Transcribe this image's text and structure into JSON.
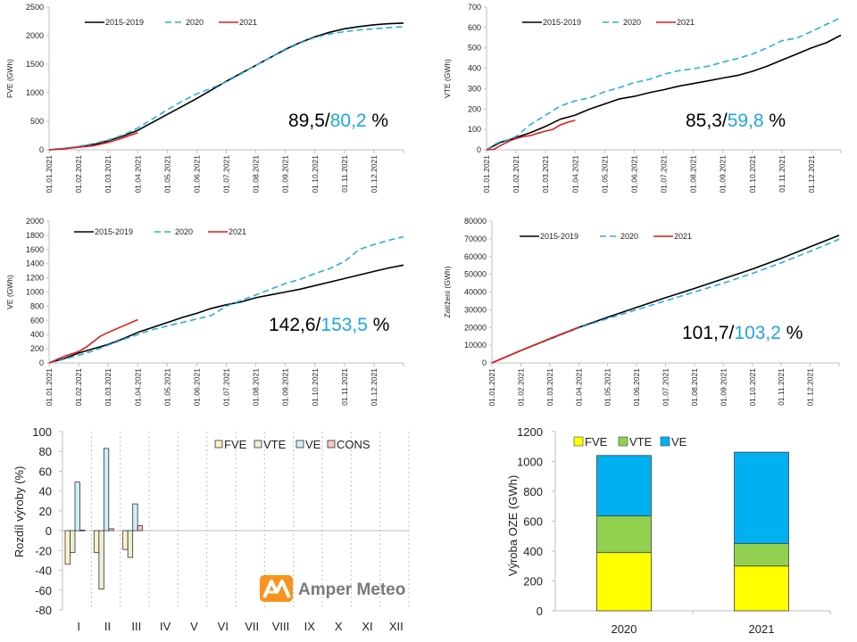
{
  "colors": {
    "black": "#000000",
    "blue_dashed": "#2aaee0",
    "red": "#e21a1a",
    "ann_blue": "#1ea7e0",
    "fve_bar": "#fff2c8",
    "vte_bar": "#e8f1d6",
    "ve_bar": "#cdeefa",
    "cons_bar": "#f6c6c6",
    "stack_fve": "#ffff00",
    "stack_vte": "#92d050",
    "stack_ve": "#00b0f0",
    "logo_orange": "#f7941d"
  },
  "logo": {
    "text": "Amper Meteo",
    "icon": "amper-meteo-logo-icon"
  },
  "chart_data": [
    {
      "id": "fve",
      "type": "line",
      "title": "",
      "xlabel": "",
      "ylabel": "FVE  (GWh)",
      "ylim": [
        0,
        2500
      ],
      "yticks": [
        "0",
        "500",
        "1000",
        "1500",
        "2000",
        "2500"
      ],
      "yvals": [
        0,
        500,
        1000,
        1500,
        2000,
        2500
      ],
      "xticks": [
        "01.01.2021",
        "01.02.2021",
        "01.03.2021",
        "01.04.2021",
        "01.05.2021",
        "01.06.2021",
        "01.07.2021",
        "01.08.2021",
        "01.09.2021",
        "01.10.2021",
        "01.11.2021",
        "01.12.2021"
      ],
      "x_unit": "month_index (0 = 01.01, 12 = 31.12)",
      "xlim": [
        0,
        12
      ],
      "grid": false,
      "legend": "top-left",
      "annotation": {
        "black": "89,5/",
        "blue": "80,2",
        "suffix": " %"
      },
      "series": [
        {
          "name": "2015-2019",
          "style": "solid",
          "color": "#000000",
          "x": [
            0,
            0.5,
            1,
            1.5,
            2,
            2.5,
            3,
            3.5,
            4,
            4.5,
            5,
            5.5,
            6,
            6.5,
            7,
            7.5,
            8,
            8.5,
            9,
            9.5,
            10,
            10.5,
            11,
            11.5,
            12
          ],
          "y": [
            0,
            20,
            50,
            90,
            160,
            240,
            340,
            480,
            620,
            760,
            900,
            1050,
            1200,
            1340,
            1480,
            1620,
            1760,
            1880,
            1980,
            2060,
            2120,
            2160,
            2190,
            2210,
            2220
          ]
        },
        {
          "name": "2020",
          "style": "dashed",
          "color": "#2aaee0",
          "x": [
            0,
            0.5,
            1,
            1.5,
            2,
            2.5,
            3,
            3.5,
            4,
            4.5,
            5,
            5.5,
            6,
            6.5,
            7,
            7.5,
            8,
            8.5,
            9,
            9.5,
            10,
            10.5,
            11,
            11.5,
            12
          ],
          "y": [
            0,
            25,
            60,
            110,
            170,
            260,
            380,
            540,
            700,
            850,
            980,
            1080,
            1190,
            1330,
            1480,
            1620,
            1750,
            1870,
            1970,
            2030,
            2070,
            2100,
            2120,
            2140,
            2160
          ]
        },
        {
          "name": "2021",
          "style": "solid",
          "color": "#e21a1a",
          "x": [
            0,
            0.5,
            1,
            1.5,
            2,
            2.5,
            3
          ],
          "y": [
            0,
            15,
            45,
            70,
            130,
            210,
            300
          ]
        }
      ]
    },
    {
      "id": "vte",
      "type": "line",
      "title": "",
      "xlabel": "",
      "ylabel": "VTE  (GWh)",
      "ylim": [
        0,
        700
      ],
      "yticks": [
        "0",
        "100",
        "200",
        "300",
        "400",
        "500",
        "600",
        "700"
      ],
      "yvals": [
        0,
        100,
        200,
        300,
        400,
        500,
        600,
        700
      ],
      "xticks": [
        "01.01.2021",
        "01.02.2021",
        "01.03.2021",
        "01.04.2021",
        "01.05.2021",
        "01.06.2021",
        "01.07.2021",
        "01.08.2021",
        "01.09.2021",
        "01.10.2021",
        "01.11.2021",
        "01.12.2021"
      ],
      "xlim": [
        0,
        12
      ],
      "grid": false,
      "legend": "top-left",
      "annotation": {
        "black": "85,3/",
        "blue": "59,8",
        "suffix": " %"
      },
      "series": [
        {
          "name": "2015-2019",
          "style": "solid",
          "color": "#000000",
          "x": [
            0,
            0.25,
            0.5,
            0.75,
            1,
            1.5,
            2,
            2.5,
            3,
            3.5,
            4,
            4.5,
            5,
            5.5,
            6,
            6.5,
            7,
            7.5,
            8,
            8.5,
            9,
            9.5,
            10,
            10.5,
            11,
            11.5,
            12
          ],
          "y": [
            0,
            20,
            38,
            48,
            60,
            85,
            115,
            150,
            170,
            200,
            225,
            250,
            262,
            280,
            295,
            312,
            325,
            338,
            352,
            365,
            385,
            410,
            440,
            470,
            500,
            525,
            562
          ]
        },
        {
          "name": "2020",
          "style": "dashed",
          "color": "#2aaee0",
          "x": [
            0,
            0.25,
            0.5,
            0.75,
            1,
            1.5,
            2,
            2.5,
            3,
            3.5,
            4,
            4.5,
            5,
            5.5,
            6,
            6.5,
            7,
            7.5,
            8,
            8.5,
            9,
            9.5,
            10,
            10.5,
            11,
            11.5,
            12
          ],
          "y": [
            0,
            25,
            42,
            50,
            65,
            125,
            170,
            215,
            240,
            255,
            285,
            305,
            330,
            345,
            370,
            388,
            398,
            410,
            430,
            448,
            470,
            500,
            535,
            548,
            580,
            615,
            648
          ]
        },
        {
          "name": "2021",
          "style": "solid",
          "color": "#e21a1a",
          "x": [
            0,
            0.25,
            0.4,
            0.6,
            0.8,
            1,
            1.25,
            1.5,
            1.75,
            2,
            2.25,
            2.5,
            2.75,
            3
          ],
          "y": [
            0,
            2,
            15,
            30,
            45,
            55,
            65,
            70,
            82,
            92,
            100,
            122,
            135,
            145
          ]
        }
      ]
    },
    {
      "id": "ve",
      "type": "line",
      "title": "",
      "xlabel": "",
      "ylabel": "VE  (GWh)",
      "ylim": [
        0,
        2000
      ],
      "yticks": [
        "0",
        "200",
        "400",
        "600",
        "800",
        "1000",
        "1200",
        "1400",
        "1600",
        "1800",
        "2000"
      ],
      "yvals": [
        0,
        200,
        400,
        600,
        800,
        1000,
        1200,
        1400,
        1600,
        1800,
        2000
      ],
      "xticks": [
        "01.01.2021",
        "01.02.2021",
        "01.03.2021",
        "01.04.2021",
        "01.05.2021",
        "01.06.2021",
        "01.07.2021",
        "01.08.2021",
        "01.09.2021",
        "01.10.2021",
        "01.11.2021",
        "01.12.2021"
      ],
      "xlim": [
        0,
        12
      ],
      "grid": false,
      "legend": "top-left",
      "annotation": {
        "black": "142,6/",
        "blue": "153,5",
        "suffix": " %"
      },
      "series": [
        {
          "name": "2015-2019",
          "style": "solid",
          "color": "#000000",
          "x": [
            0,
            0.5,
            1,
            1.5,
            2,
            2.5,
            3,
            3.5,
            4,
            4.5,
            5,
            5.5,
            6,
            6.5,
            7,
            7.5,
            8,
            8.5,
            9,
            9.5,
            10,
            10.5,
            11,
            11.5,
            12
          ],
          "y": [
            0,
            60,
            140,
            200,
            260,
            340,
            430,
            500,
            570,
            640,
            700,
            770,
            820,
            860,
            920,
            960,
            1000,
            1040,
            1090,
            1140,
            1190,
            1240,
            1290,
            1340,
            1380
          ]
        },
        {
          "name": "2020",
          "style": "dashed",
          "color": "#2aaee0",
          "x": [
            0,
            0.5,
            1,
            1.5,
            2,
            2.5,
            3,
            3.5,
            4,
            4.5,
            5,
            5.5,
            6,
            6.5,
            7,
            7.5,
            8,
            8.5,
            9,
            9.5,
            10,
            10.5,
            11,
            11.5,
            12
          ],
          "y": [
            0,
            50,
            110,
            170,
            250,
            330,
            400,
            470,
            520,
            570,
            620,
            670,
            800,
            880,
            960,
            1040,
            1120,
            1180,
            1260,
            1330,
            1430,
            1600,
            1670,
            1730,
            1780
          ]
        },
        {
          "name": "2021",
          "style": "solid",
          "color": "#e21a1a",
          "x": [
            0,
            0.5,
            1,
            1.25,
            1.5,
            1.75,
            2,
            2.5,
            3
          ],
          "y": [
            0,
            90,
            160,
            220,
            300,
            380,
            430,
            520,
            610
          ]
        }
      ]
    },
    {
      "id": "load",
      "type": "line",
      "title": "",
      "xlabel": "",
      "ylabel": "Zatížení  (GWh)",
      "ylim": [
        0,
        80000
      ],
      "yticks": [
        "0",
        "10000",
        "20000",
        "30000",
        "40000",
        "50000",
        "60000",
        "70000",
        "80000"
      ],
      "yvals": [
        0,
        10000,
        20000,
        30000,
        40000,
        50000,
        60000,
        70000,
        80000
      ],
      "xticks": [
        "01.01.2021",
        "01.02.2021",
        "01.03.2021",
        "01.04.2021",
        "01.05.2021",
        "01.06.2021",
        "01.07.2021",
        "01.08.2021",
        "01.09.2021",
        "01.10.2021",
        "01.11.2021",
        "01.12.2021"
      ],
      "xlim": [
        0,
        12
      ],
      "grid": false,
      "legend": "top-left",
      "annotation": {
        "black": "101,7/",
        "blue": "103,2",
        "suffix": " %"
      },
      "series": [
        {
          "name": "2015-2019",
          "style": "solid",
          "color": "#000000",
          "x": [
            0,
            1,
            2,
            3,
            4,
            5,
            6,
            7,
            8,
            9,
            10,
            11,
            12
          ],
          "y": [
            0,
            7000,
            13500,
            20000,
            25800,
            31300,
            36800,
            42000,
            47500,
            53000,
            59000,
            65500,
            72000
          ]
        },
        {
          "name": "2020",
          "style": "dashed",
          "color": "#2aaee0",
          "x": [
            0,
            1,
            2,
            3,
            4,
            5,
            6,
            7,
            8,
            9,
            10,
            11,
            12
          ],
          "y": [
            0,
            7000,
            13500,
            19800,
            25000,
            30000,
            35000,
            40000,
            45000,
            50500,
            56500,
            63000,
            69800
          ]
        },
        {
          "name": "2021",
          "style": "solid",
          "color": "#e21a1a",
          "x": [
            0,
            1,
            2,
            3
          ],
          "y": [
            0,
            7000,
            13700,
            20200
          ]
        }
      ]
    },
    {
      "id": "diff",
      "type": "bar",
      "title": "",
      "xlabel": "",
      "ylabel": "Rozdíl výroby (%)",
      "ylim": [
        -80,
        100
      ],
      "yticks": [
        "-80",
        "-60",
        "-40",
        "-20",
        "0",
        "20",
        "40",
        "60",
        "80",
        "100"
      ],
      "yvals": [
        -80,
        -60,
        -40,
        -20,
        0,
        20,
        40,
        60,
        80,
        100
      ],
      "categories": [
        "I",
        "II",
        "III",
        "IV",
        "V",
        "VI",
        "VII",
        "VIII",
        "IX",
        "X",
        "XI",
        "XII"
      ],
      "grid": "vertical dotted separators",
      "legend": "top-right",
      "series": [
        {
          "name": "FVE",
          "color": "#fff2c8",
          "values": [
            -34,
            -22,
            -19,
            null,
            null,
            null,
            null,
            null,
            null,
            null,
            null,
            null
          ]
        },
        {
          "name": "VTE",
          "color": "#e8f1d6",
          "values": [
            -22,
            -59,
            -27,
            null,
            null,
            null,
            null,
            null,
            null,
            null,
            null,
            null
          ]
        },
        {
          "name": "VE",
          "color": "#cdeefa",
          "values": [
            49,
            83,
            27,
            null,
            null,
            null,
            null,
            null,
            null,
            null,
            null,
            null
          ]
        },
        {
          "name": "CONS",
          "color": "#f6c6c6",
          "values": [
            0.5,
            2,
            5,
            null,
            null,
            null,
            null,
            null,
            null,
            null,
            null,
            null
          ]
        }
      ]
    },
    {
      "id": "stack",
      "type": "bar",
      "stacked": true,
      "title": "",
      "xlabel": "",
      "ylabel": "Výroba OZE (GWh)",
      "ylim": [
        0,
        1200
      ],
      "yticks": [
        "0",
        "200",
        "400",
        "600",
        "800",
        "1000",
        "1200"
      ],
      "yvals": [
        0,
        200,
        400,
        600,
        800,
        1000,
        1200
      ],
      "categories": [
        "2020",
        "2021"
      ],
      "grid": false,
      "legend": "top-left",
      "series": [
        {
          "name": "FVE",
          "color": "#ffff00",
          "values": [
            390,
            300
          ]
        },
        {
          "name": "VTE",
          "color": "#92d050",
          "values": [
            245,
            150
          ]
        },
        {
          "name": "VE",
          "color": "#00b0f0",
          "values": [
            405,
            612
          ]
        }
      ]
    }
  ]
}
